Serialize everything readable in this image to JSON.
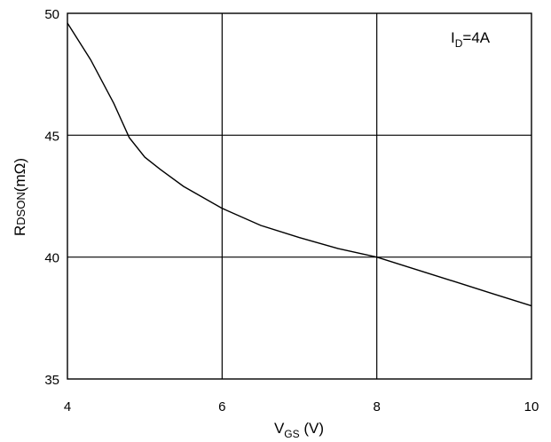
{
  "chart_data": {
    "type": "line",
    "xlim": [
      4,
      10
    ],
    "ylim": [
      35,
      50
    ],
    "x_ticks": [
      "4",
      "6",
      "8",
      "10"
    ],
    "y_ticks": [
      "35",
      "40",
      "45",
      "50"
    ],
    "x_tick_values": [
      4,
      6,
      8,
      10
    ],
    "y_tick_values": [
      35,
      40,
      45,
      50
    ],
    "xlabel": {
      "main": "V",
      "sub": "GS",
      "rest": " (V)"
    },
    "ylabel": {
      "main": "R",
      "sub": "DSON",
      "rest": "(mΩ)"
    },
    "annotation": {
      "main": "I",
      "sub": "D",
      "rest": "=4A",
      "position": "top-right"
    },
    "grid": true,
    "line_color": "#000000",
    "series": [
      {
        "x": [
          4.0,
          4.3,
          4.6,
          4.8,
          5.0,
          5.2,
          5.5,
          6.0,
          6.5,
          7.0,
          7.5,
          8.0,
          8.5,
          9.0,
          9.5,
          10.0
        ],
        "y": [
          49.6,
          48.1,
          46.3,
          44.9,
          44.1,
          43.6,
          42.9,
          42.0,
          41.3,
          40.8,
          40.35,
          40.0,
          39.5,
          39.0,
          38.5,
          38.0
        ]
      }
    ]
  }
}
